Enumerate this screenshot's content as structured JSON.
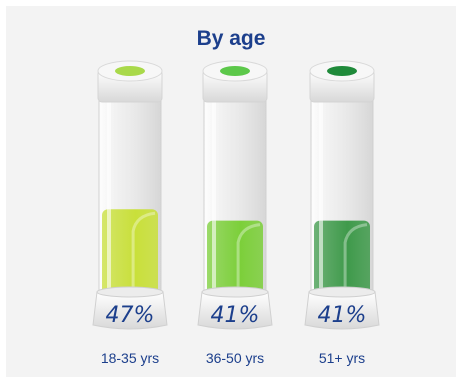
{
  "chart_data": {
    "type": "bar",
    "title": "By age",
    "categories": [
      "18-35 yrs",
      "36-50 yrs",
      "51+ yrs"
    ],
    "values": [
      47,
      41,
      41
    ],
    "value_labels": [
      "47%",
      "41%",
      "41%"
    ],
    "ylim": [
      0,
      100
    ],
    "colors": [
      "#c9e03a",
      "#7ccf3a",
      "#3f9a4b"
    ],
    "cap_colors": [
      "#a9d94a",
      "#5cc84a",
      "#1f8a3a"
    ],
    "title_color": "#1c3f8c",
    "label_color": "#1c3f8c"
  }
}
